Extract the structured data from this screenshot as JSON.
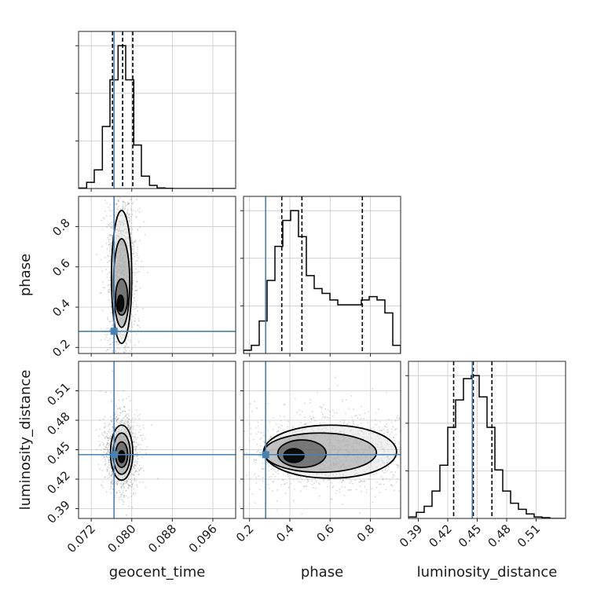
{
  "chart_data": {
    "type": "corner",
    "parameters": [
      "geocent_time",
      "phase",
      "luminosity_distance"
    ],
    "truths": {
      "geocent_time": 0.0765,
      "phase": 0.28,
      "luminosity_distance": 0.445
    },
    "axes": {
      "geocent_time": {
        "range": [
          0.0695,
          0.1005
        ],
        "ticks": [
          0.072,
          0.08,
          0.088,
          0.096
        ],
        "tick_labels": [
          "0.072",
          "0.080",
          "0.088",
          "0.096"
        ]
      },
      "phase": {
        "range": [
          0.17,
          0.95
        ],
        "ticks": [
          0.2,
          0.4,
          0.6,
          0.8
        ],
        "tick_labels": [
          "0.2",
          "0.4",
          "0.6",
          "0.8"
        ]
      },
      "luminosity_distance": {
        "range": [
          0.38,
          0.54
        ],
        "ticks": [
          0.39,
          0.42,
          0.45,
          0.48,
          0.51
        ],
        "tick_labels": [
          "0.39",
          "0.42",
          "0.45",
          "0.48",
          "0.51"
        ]
      }
    },
    "histograms": {
      "geocent_time": {
        "edges": [
          0.0695,
          0.0711,
          0.0726,
          0.0742,
          0.0757,
          0.0773,
          0.0788,
          0.0804,
          0.0819,
          0.0835,
          0.085,
          0.0866,
          0.0881,
          0.0897,
          0.0912,
          0.0928,
          0.0943,
          0.0959,
          0.0974,
          0.099,
          0.1005
        ],
        "counts": [
          0.3,
          4.0,
          12.0,
          40.0,
          70.0,
          92.0,
          70.0,
          28.0,
          8.0,
          2.0,
          0.4,
          0.1,
          0,
          0,
          0,
          0,
          0,
          0,
          0,
          0
        ],
        "quantiles": [
          0.0762,
          0.0782,
          0.0802
        ]
      },
      "phase": {
        "edges": [
          0.17,
          0.209,
          0.248,
          0.287,
          0.326,
          0.365,
          0.404,
          0.443,
          0.482,
          0.521,
          0.56,
          0.599,
          0.638,
          0.677,
          0.716,
          0.755,
          0.794,
          0.833,
          0.872,
          0.911,
          0.95
        ],
        "counts": [
          2,
          5,
          20,
          45,
          66,
          82,
          88,
          72,
          48,
          40,
          37,
          33,
          30,
          30,
          30,
          33,
          35,
          33,
          25,
          5
        ],
        "quantiles": [
          0.36,
          0.46,
          0.76
        ]
      },
      "luminosity_distance": {
        "edges": [
          0.38,
          0.388,
          0.396,
          0.404,
          0.412,
          0.42,
          0.428,
          0.436,
          0.444,
          0.452,
          0.46,
          0.468,
          0.476,
          0.484,
          0.492,
          0.5,
          0.508,
          0.516,
          0.524,
          0.532,
          0.54
        ],
        "counts": [
          1,
          4,
          8,
          18,
          35,
          60,
          78,
          92,
          94,
          80,
          60,
          32,
          18,
          10,
          6,
          3,
          1,
          0.5,
          0,
          0
        ],
        "quantiles": [
          0.426,
          0.446,
          0.465
        ]
      }
    },
    "joint": [
      {
        "x": "geocent_time",
        "y": "phase",
        "center": [
          0.0782,
          0.42
        ],
        "contour_sets": [
          [
            0.0778,
            0.42,
            0.0006,
            0.04
          ],
          [
            0.078,
            0.45,
            0.0012,
            0.09
          ],
          [
            0.078,
            0.52,
            0.0016,
            0.22
          ],
          [
            0.078,
            0.55,
            0.002,
            0.33
          ]
        ]
      },
      {
        "x": "geocent_time",
        "y": "luminosity_distance",
        "center": [
          0.078,
          0.444
        ],
        "contour_sets": [
          [
            0.078,
            0.443,
            0.0006,
            0.006
          ],
          [
            0.078,
            0.445,
            0.0012,
            0.013
          ],
          [
            0.078,
            0.446,
            0.0017,
            0.021
          ],
          [
            0.078,
            0.447,
            0.0022,
            0.028
          ]
        ]
      },
      {
        "x": "phase",
        "y": "luminosity_distance",
        "center": [
          0.42,
          0.444
        ],
        "contour_sets": [
          [
            0.42,
            0.444,
            0.05,
            0.007
          ],
          [
            0.46,
            0.446,
            0.12,
            0.014
          ],
          [
            0.55,
            0.447,
            0.28,
            0.02
          ],
          [
            0.6,
            0.448,
            0.33,
            0.027
          ]
        ]
      }
    ]
  }
}
